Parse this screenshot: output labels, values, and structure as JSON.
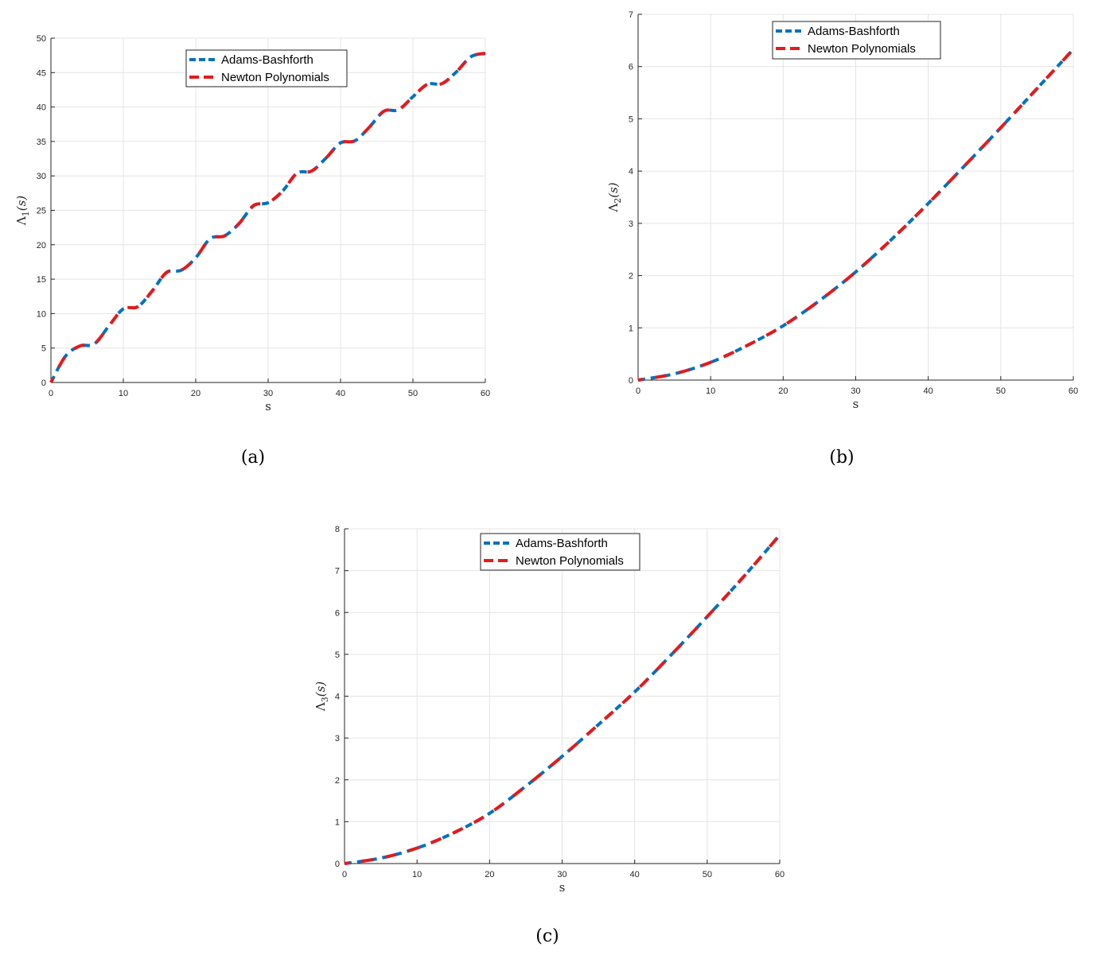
{
  "chart_data": [
    {
      "type": "line",
      "panel": "(a)",
      "xlabel": "s",
      "ylabel": "Λ1(s)",
      "xlim": [
        0,
        60
      ],
      "ylim": [
        0,
        50
      ],
      "xticks": [
        0,
        10,
        20,
        30,
        40,
        50,
        60
      ],
      "yticks": [
        0,
        5,
        10,
        15,
        20,
        25,
        30,
        35,
        40,
        45,
        50
      ],
      "grid": true,
      "legend": "top-center",
      "x": [
        0,
        2,
        4,
        6,
        8,
        10,
        12,
        14,
        16,
        18,
        20,
        22,
        24,
        26,
        28,
        30,
        32,
        34,
        36,
        38,
        40,
        42,
        44,
        46,
        48,
        50,
        52,
        54,
        56,
        58,
        60
      ],
      "series": [
        {
          "name": "Adams-Bashforth",
          "color": "#0072BD",
          "style": "dashed",
          "values": [
            0,
            3.8,
            5.3,
            5.6,
            8.2,
            10.7,
            11.0,
            13.3,
            16.0,
            16.3,
            18.1,
            20.9,
            21.3,
            23.1,
            25.7,
            26.1,
            27.8,
            30.4,
            30.7,
            32.6,
            34.8,
            35.1,
            37.1,
            39.4,
            39.6,
            41.5,
            43.3,
            43.4,
            45.1,
            47.3,
            47.8
          ]
        },
        {
          "name": "Newton Polynomials",
          "color": "#E41A1C",
          "style": "dashed",
          "values": [
            0,
            3.8,
            5.3,
            5.6,
            8.2,
            10.7,
            11.0,
            13.3,
            16.0,
            16.3,
            18.1,
            20.9,
            21.3,
            23.1,
            25.7,
            26.1,
            27.8,
            30.4,
            30.7,
            32.6,
            34.8,
            35.1,
            37.1,
            39.4,
            39.6,
            41.5,
            43.3,
            43.4,
            45.1,
            47.3,
            47.8
          ]
        }
      ]
    },
    {
      "type": "line",
      "panel": "(b)",
      "xlabel": "s",
      "ylabel": "Λ2(s)",
      "xlim": [
        0,
        60
      ],
      "ylim": [
        0,
        7
      ],
      "xticks": [
        0,
        10,
        20,
        30,
        40,
        50,
        60
      ],
      "yticks": [
        0,
        1,
        2,
        3,
        4,
        5,
        6,
        7
      ],
      "grid": true,
      "legend": "top-center",
      "x": [
        0,
        5,
        10,
        15,
        20,
        25,
        30,
        35,
        40,
        45,
        50,
        55,
        60
      ],
      "series": [
        {
          "name": "Adams-Bashforth",
          "color": "#0072BD",
          "style": "dashed",
          "values": [
            0,
            0.12,
            0.34,
            0.66,
            1.04,
            1.52,
            2.07,
            2.7,
            3.38,
            4.1,
            4.83,
            5.58,
            6.33
          ]
        },
        {
          "name": "Newton Polynomials",
          "color": "#E41A1C",
          "style": "dashed",
          "values": [
            0,
            0.12,
            0.34,
            0.66,
            1.04,
            1.52,
            2.07,
            2.7,
            3.38,
            4.1,
            4.83,
            5.58,
            6.33
          ]
        }
      ]
    },
    {
      "type": "line",
      "panel": "(c)",
      "xlabel": "s",
      "ylabel": "Λ3(s)",
      "xlim": [
        0,
        60
      ],
      "ylim": [
        0,
        8
      ],
      "xticks": [
        0,
        10,
        20,
        30,
        40,
        50,
        60
      ],
      "yticks": [
        0,
        1,
        2,
        3,
        4,
        5,
        6,
        7,
        8
      ],
      "grid": true,
      "legend": "top-center",
      "x": [
        0,
        5,
        10,
        15,
        20,
        25,
        30,
        35,
        40,
        45,
        50,
        55,
        60
      ],
      "series": [
        {
          "name": "Adams-Bashforth",
          "color": "#0072BD",
          "style": "dashed",
          "values": [
            0,
            0.13,
            0.37,
            0.73,
            1.2,
            1.85,
            2.56,
            3.32,
            4.1,
            4.98,
            5.9,
            6.85,
            7.85
          ]
        },
        {
          "name": "Newton Polynomials",
          "color": "#E41A1C",
          "style": "dashed",
          "values": [
            0,
            0.13,
            0.37,
            0.73,
            1.2,
            1.85,
            2.56,
            3.32,
            4.1,
            4.98,
            5.9,
            6.85,
            7.85
          ]
        }
      ]
    }
  ]
}
